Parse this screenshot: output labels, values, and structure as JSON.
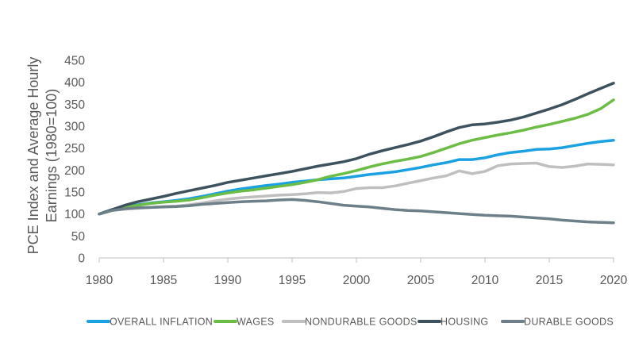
{
  "chart_data": {
    "type": "line",
    "title": "",
    "xlabel": "",
    "ylabel_lines": [
      "PCE Index and Average Hourly",
      "Earnings (1980=100)"
    ],
    "xlim": [
      1980,
      2020
    ],
    "ylim": [
      0,
      450
    ],
    "x_ticks": [
      1980,
      1985,
      1990,
      1995,
      2000,
      2005,
      2010,
      2015,
      2020
    ],
    "y_ticks": [
      0,
      50,
      100,
      150,
      200,
      250,
      300,
      350,
      400,
      450
    ],
    "grid": false,
    "legend_position": "bottom",
    "series": [
      {
        "name": "OVERALL INFLATION",
        "color": "#1ba1e2",
        "points": [
          [
            1980,
            100
          ],
          [
            1981,
            110
          ],
          [
            1982,
            116
          ],
          [
            1983,
            121
          ],
          [
            1984,
            125
          ],
          [
            1985,
            128
          ],
          [
            1986,
            131
          ],
          [
            1987,
            135
          ],
          [
            1988,
            140
          ],
          [
            1989,
            146
          ],
          [
            1990,
            152
          ],
          [
            1991,
            157
          ],
          [
            1992,
            161
          ],
          [
            1993,
            165
          ],
          [
            1994,
            168
          ],
          [
            1995,
            172
          ],
          [
            1996,
            175
          ],
          [
            1997,
            178
          ],
          [
            1998,
            180
          ],
          [
            1999,
            182
          ],
          [
            2000,
            186
          ],
          [
            2001,
            190
          ],
          [
            2002,
            193
          ],
          [
            2003,
            196
          ],
          [
            2004,
            201
          ],
          [
            2005,
            206
          ],
          [
            2006,
            212
          ],
          [
            2007,
            217
          ],
          [
            2008,
            224
          ],
          [
            2009,
            224
          ],
          [
            2010,
            228
          ],
          [
            2011,
            235
          ],
          [
            2012,
            240
          ],
          [
            2013,
            243
          ],
          [
            2014,
            247
          ],
          [
            2015,
            248
          ],
          [
            2016,
            251
          ],
          [
            2017,
            256
          ],
          [
            2018,
            261
          ],
          [
            2019,
            265
          ],
          [
            2020,
            268
          ]
        ]
      },
      {
        "name": "WAGES",
        "color": "#6cbd45",
        "points": [
          [
            1980,
            100
          ],
          [
            1981,
            108
          ],
          [
            1982,
            115
          ],
          [
            1983,
            120
          ],
          [
            1984,
            124
          ],
          [
            1985,
            127
          ],
          [
            1986,
            129
          ],
          [
            1987,
            132
          ],
          [
            1988,
            137
          ],
          [
            1989,
            143
          ],
          [
            1990,
            148
          ],
          [
            1991,
            152
          ],
          [
            1992,
            155
          ],
          [
            1993,
            159
          ],
          [
            1994,
            163
          ],
          [
            1995,
            167
          ],
          [
            1996,
            172
          ],
          [
            1997,
            178
          ],
          [
            1998,
            186
          ],
          [
            1999,
            192
          ],
          [
            2000,
            199
          ],
          [
            2001,
            207
          ],
          [
            2002,
            214
          ],
          [
            2003,
            220
          ],
          [
            2004,
            225
          ],
          [
            2005,
            231
          ],
          [
            2006,
            240
          ],
          [
            2007,
            250
          ],
          [
            2008,
            260
          ],
          [
            2009,
            268
          ],
          [
            2010,
            274
          ],
          [
            2011,
            280
          ],
          [
            2012,
            285
          ],
          [
            2013,
            291
          ],
          [
            2014,
            298
          ],
          [
            2015,
            304
          ],
          [
            2016,
            311
          ],
          [
            2017,
            318
          ],
          [
            2018,
            327
          ],
          [
            2019,
            340
          ],
          [
            2020,
            360
          ]
        ]
      },
      {
        "name": "NONDURABLE GOODS",
        "color": "#bfbfbf",
        "points": [
          [
            1980,
            100
          ],
          [
            1981,
            108
          ],
          [
            1982,
            111
          ],
          [
            1983,
            113
          ],
          [
            1984,
            115
          ],
          [
            1985,
            117
          ],
          [
            1986,
            118
          ],
          [
            1987,
            121
          ],
          [
            1988,
            125
          ],
          [
            1989,
            130
          ],
          [
            1990,
            134
          ],
          [
            1991,
            137
          ],
          [
            1992,
            139
          ],
          [
            1993,
            141
          ],
          [
            1994,
            143
          ],
          [
            1995,
            144
          ],
          [
            1996,
            146
          ],
          [
            1997,
            149
          ],
          [
            1998,
            148
          ],
          [
            1999,
            151
          ],
          [
            2000,
            158
          ],
          [
            2001,
            160
          ],
          [
            2002,
            160
          ],
          [
            2003,
            164
          ],
          [
            2004,
            170
          ],
          [
            2005,
            176
          ],
          [
            2006,
            182
          ],
          [
            2007,
            187
          ],
          [
            2008,
            198
          ],
          [
            2009,
            192
          ],
          [
            2010,
            197
          ],
          [
            2011,
            210
          ],
          [
            2012,
            214
          ],
          [
            2013,
            215
          ],
          [
            2014,
            216
          ],
          [
            2015,
            208
          ],
          [
            2016,
            206
          ],
          [
            2017,
            209
          ],
          [
            2018,
            214
          ],
          [
            2019,
            213
          ],
          [
            2020,
            212
          ]
        ]
      },
      {
        "name": "HOUSING",
        "color": "#3d525e",
        "points": [
          [
            1980,
            100
          ],
          [
            1981,
            110
          ],
          [
            1982,
            120
          ],
          [
            1983,
            128
          ],
          [
            1984,
            134
          ],
          [
            1985,
            140
          ],
          [
            1986,
            147
          ],
          [
            1987,
            153
          ],
          [
            1988,
            159
          ],
          [
            1989,
            165
          ],
          [
            1990,
            172
          ],
          [
            1991,
            177
          ],
          [
            1992,
            182
          ],
          [
            1993,
            187
          ],
          [
            1994,
            192
          ],
          [
            1995,
            197
          ],
          [
            1996,
            203
          ],
          [
            1997,
            209
          ],
          [
            1998,
            214
          ],
          [
            1999,
            219
          ],
          [
            2000,
            226
          ],
          [
            2001,
            236
          ],
          [
            2002,
            244
          ],
          [
            2003,
            251
          ],
          [
            2004,
            258
          ],
          [
            2005,
            266
          ],
          [
            2006,
            276
          ],
          [
            2007,
            287
          ],
          [
            2008,
            297
          ],
          [
            2009,
            303
          ],
          [
            2010,
            305
          ],
          [
            2011,
            309
          ],
          [
            2012,
            314
          ],
          [
            2013,
            321
          ],
          [
            2014,
            330
          ],
          [
            2015,
            339
          ],
          [
            2016,
            349
          ],
          [
            2017,
            361
          ],
          [
            2018,
            374
          ],
          [
            2019,
            386
          ],
          [
            2020,
            398
          ]
        ]
      },
      {
        "name": "DURABLE GOODS",
        "color": "#6d7f88",
        "points": [
          [
            1980,
            100
          ],
          [
            1981,
            108
          ],
          [
            1982,
            112
          ],
          [
            1983,
            114
          ],
          [
            1984,
            115
          ],
          [
            1985,
            116
          ],
          [
            1986,
            117
          ],
          [
            1987,
            119
          ],
          [
            1988,
            122
          ],
          [
            1989,
            124
          ],
          [
            1990,
            126
          ],
          [
            1991,
            128
          ],
          [
            1992,
            129
          ],
          [
            1993,
            130
          ],
          [
            1994,
            132
          ],
          [
            1995,
            133
          ],
          [
            1996,
            131
          ],
          [
            1997,
            128
          ],
          [
            1998,
            124
          ],
          [
            1999,
            120
          ],
          [
            2000,
            118
          ],
          [
            2001,
            116
          ],
          [
            2002,
            113
          ],
          [
            2003,
            110
          ],
          [
            2004,
            108
          ],
          [
            2005,
            107
          ],
          [
            2006,
            105
          ],
          [
            2007,
            103
          ],
          [
            2008,
            101
          ],
          [
            2009,
            99
          ],
          [
            2010,
            97
          ],
          [
            2011,
            96
          ],
          [
            2012,
            95
          ],
          [
            2013,
            93
          ],
          [
            2014,
            91
          ],
          [
            2015,
            89
          ],
          [
            2016,
            86
          ],
          [
            2017,
            84
          ],
          [
            2018,
            82
          ],
          [
            2019,
            81
          ],
          [
            2020,
            80
          ]
        ]
      }
    ]
  }
}
